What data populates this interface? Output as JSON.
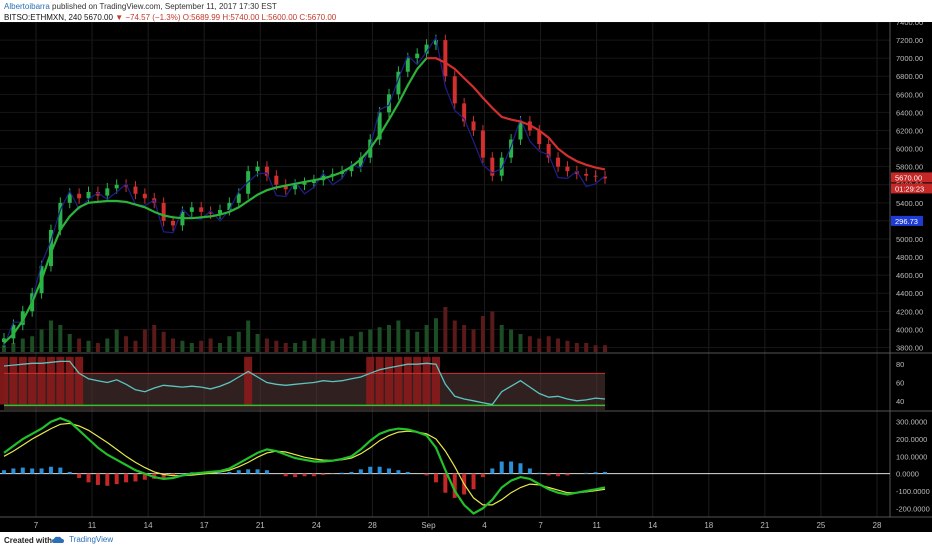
{
  "header": {
    "author": "Albertoibarra",
    "published": "published on TradingView.com, September 11, 2017 17:30 EST",
    "symbol": "BITSO:ETHMXN, 240",
    "last": "5670.00",
    "change": "−74.57 (−1.3%)",
    "o": "O:5689.99",
    "h": "H:5740.00",
    "l": "L:5600.00",
    "c": "C:5670.00"
  },
  "footer": {
    "created": "Created with",
    "brand": "TradingView"
  },
  "colors": {
    "background": "#000000",
    "up": "#29b34a",
    "down": "#d32f2f",
    "ma_fast": "#d32f2f",
    "ma_slow": "#2cb33a",
    "overlay": "#1f1f8a",
    "rsi": "#5cc4c0",
    "macd": "#22c02a",
    "signal": "#e8e84a"
  },
  "chart_data": [
    {
      "type": "line",
      "name": "price",
      "ylim": [
        3750,
        7400
      ],
      "y_ticks": [
        "7400.00",
        "7200.00",
        "7000.00",
        "6800.00",
        "6600.00",
        "6400.00",
        "6200.00",
        "6000.00",
        "5800.00",
        "5600.00",
        "5400.00",
        "5200.00",
        "5000.00",
        "4800.00",
        "4600.00",
        "4400.00",
        "4200.00",
        "4000.00",
        "3800.00"
      ],
      "x_ticks": [
        "7",
        "11",
        "14",
        "17",
        "21",
        "24",
        "28",
        "Sep",
        "4",
        "7",
        "11",
        "14",
        "18",
        "21",
        "25",
        "28"
      ],
      "price_label": "5670.00",
      "countdown_label": "01:29:23",
      "overlay_label": "296.73",
      "close": [
        3900,
        4050,
        4200,
        4400,
        4700,
        5100,
        5400,
        5500,
        5450,
        5520,
        5480,
        5560,
        5600,
        5580,
        5500,
        5450,
        5400,
        5200,
        5150,
        5300,
        5350,
        5300,
        5280,
        5320,
        5400,
        5500,
        5750,
        5800,
        5700,
        5600,
        5550,
        5600,
        5620,
        5650,
        5700,
        5720,
        5750,
        5800,
        5900,
        6100,
        6400,
        6600,
        6850,
        7000,
        7050,
        7150,
        7200,
        6800,
        6500,
        6300,
        6200,
        5900,
        5700,
        5900,
        6100,
        6300,
        6200,
        6050,
        5900,
        5800,
        5750,
        5720,
        5700,
        5690,
        5670
      ],
      "ma_fast": [
        null,
        null,
        null,
        null,
        null,
        null,
        null,
        null,
        null,
        null,
        null,
        null,
        null,
        null,
        null,
        null,
        null,
        null,
        null,
        null,
        null,
        null,
        null,
        null,
        null,
        null,
        null,
        null,
        null,
        null,
        null,
        null,
        null,
        null,
        null,
        null,
        null,
        null,
        null,
        null,
        null,
        null,
        null,
        null,
        null,
        7000,
        7000,
        6950,
        6880,
        6780,
        6680,
        6560,
        6450,
        6350,
        6320,
        6300,
        6260,
        6200,
        6120,
        6000,
        5920,
        5860,
        5820,
        5790,
        5770
      ],
      "ma_slow": [
        3850,
        3950,
        4100,
        4300,
        4550,
        4850,
        5100,
        5250,
        5350,
        5400,
        5410,
        5420,
        5420,
        5410,
        5380,
        5350,
        5300,
        5260,
        5240,
        5230,
        5230,
        5240,
        5250,
        5270,
        5300,
        5350,
        5420,
        5490,
        5540,
        5570,
        5590,
        5610,
        5630,
        5650,
        5670,
        5700,
        5740,
        5800,
        5880,
        6000,
        6150,
        6320,
        6500,
        6700,
        6880,
        7000,
        null,
        null,
        null,
        null,
        null,
        null,
        null,
        null,
        null,
        null,
        null,
        null,
        null,
        null,
        null,
        null,
        null,
        null,
        null
      ],
      "volume": [
        0.15,
        0.2,
        0.3,
        0.35,
        0.5,
        0.7,
        0.6,
        0.4,
        0.3,
        0.25,
        0.2,
        0.3,
        0.5,
        0.35,
        0.25,
        0.5,
        0.6,
        0.45,
        0.3,
        0.25,
        0.2,
        0.25,
        0.3,
        0.2,
        0.35,
        0.45,
        0.7,
        0.4,
        0.3,
        0.25,
        0.2,
        0.2,
        0.25,
        0.3,
        0.3,
        0.25,
        0.3,
        0.35,
        0.45,
        0.5,
        0.55,
        0.6,
        0.7,
        0.5,
        0.45,
        0.6,
        0.75,
        1.0,
        0.7,
        0.6,
        0.5,
        0.8,
        0.9,
        0.6,
        0.5,
        0.4,
        0.35,
        0.3,
        0.35,
        0.3,
        0.25,
        0.2,
        0.2,
        0.15,
        0.15
      ]
    },
    {
      "type": "line",
      "name": "rsi",
      "ylim": [
        30,
        90
      ],
      "y_ticks": [
        "80",
        "60",
        "40"
      ],
      "values": [
        78,
        79,
        80,
        81,
        81,
        82,
        83,
        83,
        70,
        64,
        62,
        60,
        63,
        58,
        52,
        50,
        54,
        57,
        56,
        55,
        56,
        55,
        53,
        56,
        60,
        66,
        72,
        66,
        60,
        58,
        57,
        58,
        59,
        60,
        62,
        61,
        62,
        64,
        66,
        70,
        74,
        76,
        78,
        80,
        80,
        81,
        80,
        58,
        45,
        42,
        40,
        38,
        36,
        50,
        56,
        62,
        55,
        48,
        44,
        45,
        42,
        40,
        41,
        43,
        42
      ]
    },
    {
      "type": "line",
      "name": "macd",
      "ylim": [
        -250,
        350
      ],
      "y_ticks": [
        "300.0000",
        "200.0000",
        "100.0000",
        "0.0000",
        "-100.0000",
        "-200.0000"
      ],
      "macd": [
        120,
        160,
        200,
        230,
        260,
        300,
        320,
        300,
        250,
        200,
        150,
        110,
        80,
        50,
        20,
        0,
        -20,
        -30,
        -25,
        -10,
        0,
        5,
        10,
        15,
        30,
        60,
        90,
        120,
        140,
        130,
        110,
        90,
        80,
        70,
        70,
        75,
        85,
        100,
        140,
        190,
        230,
        250,
        260,
        255,
        240,
        220,
        150,
        20,
        -100,
        -180,
        -230,
        -200,
        -150,
        -80,
        -40,
        -20,
        -30,
        -60,
        -90,
        -110,
        -120,
        -110,
        -100,
        -90,
        -80
      ],
      "signal": [
        100,
        130,
        165,
        200,
        230,
        260,
        285,
        290,
        275,
        250,
        215,
        180,
        140,
        100,
        65,
        35,
        10,
        -5,
        -12,
        -12,
        -8,
        -3,
        3,
        10,
        20,
        40,
        65,
        95,
        120,
        130,
        125,
        110,
        95,
        85,
        78,
        76,
        80,
        90,
        115,
        150,
        190,
        220,
        240,
        245,
        240,
        230,
        200,
        130,
        40,
        -60,
        -140,
        -180,
        -180,
        -150,
        -110,
        -80,
        -60,
        -65,
        -80,
        -95,
        -110,
        -110,
        -105,
        -98,
        -90
      ],
      "histogram": [
        20,
        30,
        35,
        30,
        30,
        40,
        35,
        10,
        -25,
        -50,
        -65,
        -70,
        -60,
        -50,
        -45,
        -35,
        -30,
        -25,
        -13,
        2,
        8,
        8,
        7,
        5,
        10,
        20,
        25,
        25,
        20,
        0,
        -15,
        -20,
        -15,
        -15,
        -8,
        -1,
        5,
        10,
        25,
        40,
        40,
        30,
        20,
        10,
        0,
        -10,
        -50,
        -110,
        -140,
        -120,
        -90,
        -20,
        30,
        70,
        70,
        60,
        30,
        5,
        -10,
        -15,
        -10,
        0,
        5,
        8,
        10
      ]
    }
  ]
}
